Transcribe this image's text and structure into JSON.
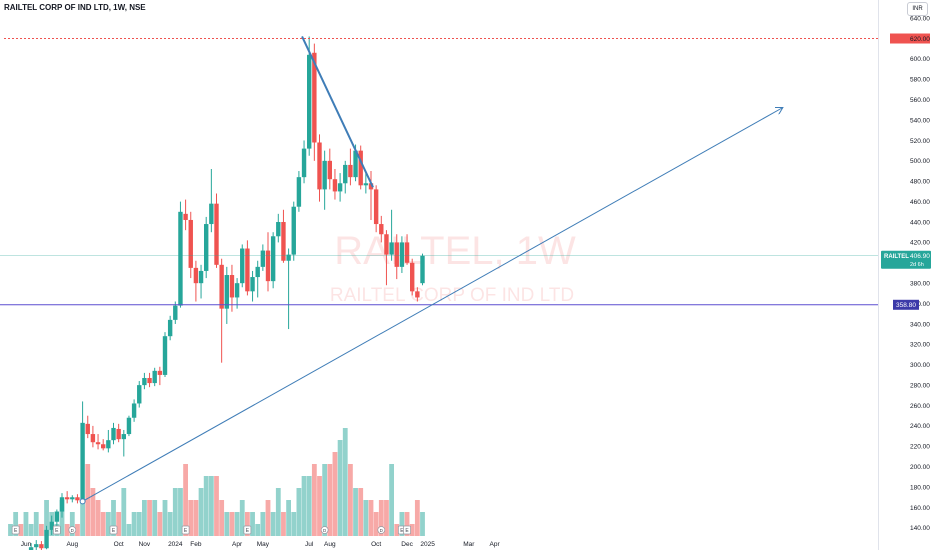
{
  "header": {
    "title": "RAILTEL CORP OF IND LTD, 1W, NSE",
    "currency": "INR"
  },
  "watermark": {
    "symbol": "RAILTEL, 1W",
    "name": "RAILTEL CORP OF IND LTD"
  },
  "colors": {
    "up": "#26a69a",
    "down": "#ef5350",
    "trendline": "#3f7db7",
    "support": "#5b4fd0",
    "high_line": "#ef5350",
    "last_price_label": "#26a69a",
    "support_label": "#3c3aa9"
  },
  "chart_data": {
    "type": "candlestick",
    "title": "RAILTEL CORP OF IND LTD, 1W, NSE",
    "timeframe": "1W",
    "exchange": "NSE",
    "y_axis": {
      "ticks": [
        "140.00",
        "160.00",
        "180.00",
        "200.00",
        "220.00",
        "240.00",
        "260.00",
        "280.00",
        "300.00",
        "320.00",
        "340.00",
        "360.00",
        "380.00",
        "400.00",
        "420.00",
        "440.00",
        "460.00",
        "480.00",
        "500.00",
        "520.00",
        "540.00",
        "560.00",
        "580.00",
        "600.00",
        "620.00",
        "640.00"
      ],
      "range": [
        132,
        646
      ]
    },
    "x_axis": {
      "ticks": [
        {
          "label": "Jun",
          "bar": 3
        },
        {
          "label": "Aug",
          "bar": 12
        },
        {
          "label": "Oct",
          "bar": 21
        },
        {
          "label": "Nov",
          "bar": 26
        },
        {
          "label": "2024",
          "bar": 32
        },
        {
          "label": "Feb",
          "bar": 36
        },
        {
          "label": "Apr",
          "bar": 44
        },
        {
          "label": "May",
          "bar": 49
        },
        {
          "label": "Jul",
          "bar": 58
        },
        {
          "label": "Aug",
          "bar": 62
        },
        {
          "label": "Oct",
          "bar": 71
        },
        {
          "label": "Dec",
          "bar": 77
        },
        {
          "label": "2025",
          "bar": 81
        },
        {
          "label": "Mar",
          "bar": 89
        },
        {
          "label": "Apr",
          "bar": 94
        }
      ]
    },
    "last_price": {
      "symbol": "RAILTEL",
      "value": "406.90",
      "countdown": "2d 6h"
    },
    "support_level": {
      "value": "358.80"
    },
    "all_time_high_value": 620,
    "candles": [
      {
        "o": 104,
        "h": 108,
        "l": 100,
        "c": 106
      },
      {
        "o": 106,
        "h": 110,
        "l": 103,
        "c": 108
      },
      {
        "o": 108,
        "h": 111,
        "l": 104,
        "c": 105
      },
      {
        "o": 105,
        "h": 114,
        "l": 103,
        "c": 112
      },
      {
        "o": 112,
        "h": 125,
        "l": 110,
        "c": 121
      },
      {
        "o": 121,
        "h": 128,
        "l": 117,
        "c": 124
      },
      {
        "o": 124,
        "h": 127,
        "l": 117,
        "c": 120
      },
      {
        "o": 120,
        "h": 142,
        "l": 119,
        "c": 138
      },
      {
        "o": 138,
        "h": 152,
        "l": 133,
        "c": 146
      },
      {
        "o": 146,
        "h": 158,
        "l": 142,
        "c": 156
      },
      {
        "o": 156,
        "h": 174,
        "l": 150,
        "c": 170
      },
      {
        "o": 170,
        "h": 176,
        "l": 164,
        "c": 168
      },
      {
        "o": 168,
        "h": 172,
        "l": 165,
        "c": 170
      },
      {
        "o": 170,
        "h": 173,
        "l": 164,
        "c": 167
      },
      {
        "o": 166,
        "h": 264,
        "l": 164,
        "c": 243
      },
      {
        "o": 242,
        "h": 250,
        "l": 228,
        "c": 232
      },
      {
        "o": 232,
        "h": 240,
        "l": 219,
        "c": 224
      },
      {
        "o": 224,
        "h": 232,
        "l": 217,
        "c": 222
      },
      {
        "o": 222,
        "h": 227,
        "l": 216,
        "c": 218
      },
      {
        "o": 218,
        "h": 236,
        "l": 214,
        "c": 226
      },
      {
        "o": 226,
        "h": 243,
        "l": 222,
        "c": 238
      },
      {
        "o": 237,
        "h": 242,
        "l": 224,
        "c": 227
      },
      {
        "o": 227,
        "h": 236,
        "l": 210,
        "c": 232
      },
      {
        "o": 232,
        "h": 250,
        "l": 230,
        "c": 248
      },
      {
        "o": 248,
        "h": 266,
        "l": 244,
        "c": 262
      },
      {
        "o": 262,
        "h": 284,
        "l": 258,
        "c": 280
      },
      {
        "o": 280,
        "h": 292,
        "l": 276,
        "c": 287
      },
      {
        "o": 287,
        "h": 292,
        "l": 278,
        "c": 282
      },
      {
        "o": 282,
        "h": 297,
        "l": 279,
        "c": 294
      },
      {
        "o": 294,
        "h": 298,
        "l": 280,
        "c": 290
      },
      {
        "o": 290,
        "h": 332,
        "l": 288,
        "c": 328
      },
      {
        "o": 328,
        "h": 348,
        "l": 324,
        "c": 344
      },
      {
        "o": 344,
        "h": 362,
        "l": 340,
        "c": 358
      },
      {
        "o": 358,
        "h": 460,
        "l": 356,
        "c": 450
      },
      {
        "o": 448,
        "h": 462,
        "l": 432,
        "c": 442
      },
      {
        "o": 442,
        "h": 450,
        "l": 385,
        "c": 395
      },
      {
        "o": 395,
        "h": 402,
        "l": 362,
        "c": 380
      },
      {
        "o": 380,
        "h": 398,
        "l": 365,
        "c": 392
      },
      {
        "o": 392,
        "h": 445,
        "l": 385,
        "c": 438
      },
      {
        "o": 438,
        "h": 492,
        "l": 430,
        "c": 458
      },
      {
        "o": 458,
        "h": 468,
        "l": 395,
        "c": 398
      },
      {
        "o": 398,
        "h": 404,
        "l": 302,
        "c": 355
      },
      {
        "o": 355,
        "h": 396,
        "l": 340,
        "c": 388
      },
      {
        "o": 388,
        "h": 398,
        "l": 352,
        "c": 366
      },
      {
        "o": 366,
        "h": 385,
        "l": 355,
        "c": 380
      },
      {
        "o": 380,
        "h": 418,
        "l": 376,
        "c": 414
      },
      {
        "o": 414,
        "h": 422,
        "l": 368,
        "c": 372
      },
      {
        "o": 372,
        "h": 392,
        "l": 362,
        "c": 386
      },
      {
        "o": 386,
        "h": 402,
        "l": 366,
        "c": 396
      },
      {
        "o": 396,
        "h": 418,
        "l": 392,
        "c": 412
      },
      {
        "o": 412,
        "h": 430,
        "l": 372,
        "c": 382
      },
      {
        "o": 382,
        "h": 430,
        "l": 375,
        "c": 426
      },
      {
        "o": 426,
        "h": 448,
        "l": 420,
        "c": 440
      },
      {
        "o": 440,
        "h": 452,
        "l": 400,
        "c": 402
      },
      {
        "o": 402,
        "h": 414,
        "l": 335,
        "c": 408
      },
      {
        "o": 408,
        "h": 460,
        "l": 402,
        "c": 455
      },
      {
        "o": 455,
        "h": 490,
        "l": 450,
        "c": 484
      },
      {
        "o": 484,
        "h": 520,
        "l": 478,
        "c": 512
      },
      {
        "o": 512,
        "h": 622,
        "l": 505,
        "c": 604
      },
      {
        "o": 606,
        "h": 615,
        "l": 500,
        "c": 518
      },
      {
        "o": 518,
        "h": 526,
        "l": 460,
        "c": 472
      },
      {
        "o": 472,
        "h": 510,
        "l": 452,
        "c": 500
      },
      {
        "o": 500,
        "h": 512,
        "l": 472,
        "c": 482
      },
      {
        "o": 482,
        "h": 492,
        "l": 462,
        "c": 470
      },
      {
        "o": 470,
        "h": 488,
        "l": 460,
        "c": 478
      },
      {
        "o": 478,
        "h": 500,
        "l": 468,
        "c": 496
      },
      {
        "o": 496,
        "h": 512,
        "l": 476,
        "c": 484
      },
      {
        "o": 484,
        "h": 516,
        "l": 480,
        "c": 510
      },
      {
        "o": 510,
        "h": 515,
        "l": 472,
        "c": 476
      },
      {
        "o": 476,
        "h": 488,
        "l": 468,
        "c": 478
      },
      {
        "o": 478,
        "h": 490,
        "l": 442,
        "c": 472
      },
      {
        "o": 472,
        "h": 476,
        "l": 430,
        "c": 438
      },
      {
        "o": 438,
        "h": 446,
        "l": 420,
        "c": 428
      },
      {
        "o": 428,
        "h": 432,
        "l": 378,
        "c": 408
      },
      {
        "o": 408,
        "h": 452,
        "l": 402,
        "c": 420
      },
      {
        "o": 420,
        "h": 428,
        "l": 384,
        "c": 396
      },
      {
        "o": 396,
        "h": 426,
        "l": 390,
        "c": 420
      },
      {
        "o": 420,
        "h": 428,
        "l": 398,
        "c": 400
      },
      {
        "o": 400,
        "h": 404,
        "l": 368,
        "c": 372
      },
      {
        "o": 372,
        "h": 376,
        "l": 362,
        "c": 366
      },
      {
        "o": 380,
        "h": 409,
        "l": 378,
        "c": 407
      }
    ],
    "volume": [
      1,
      2,
      1,
      2,
      1,
      2,
      1,
      3,
      2,
      1,
      3,
      1,
      2,
      1,
      3,
      6,
      4,
      3,
      2,
      2,
      3,
      2,
      4,
      1,
      2,
      2,
      3,
      3,
      3,
      2,
      3,
      2,
      4,
      4,
      6,
      3,
      3,
      4,
      5,
      5,
      5,
      3,
      2,
      2,
      2,
      3,
      2,
      2,
      1,
      2,
      3,
      2,
      4,
      2,
      3,
      2,
      4,
      5,
      5,
      6,
      5,
      6,
      6,
      7,
      8,
      9,
      6,
      4,
      4,
      3,
      3,
      2,
      3,
      3,
      6,
      1,
      2,
      2,
      1,
      3,
      2
    ]
  },
  "markers": [
    {
      "type": "earnings",
      "label": "E",
      "bar": 1
    },
    {
      "type": "earnings",
      "label": "E",
      "bar": 9
    },
    {
      "type": "dividend",
      "label": "D",
      "bar": 12
    },
    {
      "type": "earnings",
      "label": "E",
      "bar": 20
    },
    {
      "type": "earnings",
      "label": "E",
      "bar": 34
    },
    {
      "type": "earnings",
      "label": "E",
      "bar": 46
    },
    {
      "type": "dividend",
      "label": "D",
      "bar": 61
    },
    {
      "type": "dividend",
      "label": "D",
      "bar": 72
    },
    {
      "type": "earnings",
      "label": "E",
      "bar": 76
    },
    {
      "type": "earnings",
      "label": "E",
      "bar": 77
    }
  ]
}
